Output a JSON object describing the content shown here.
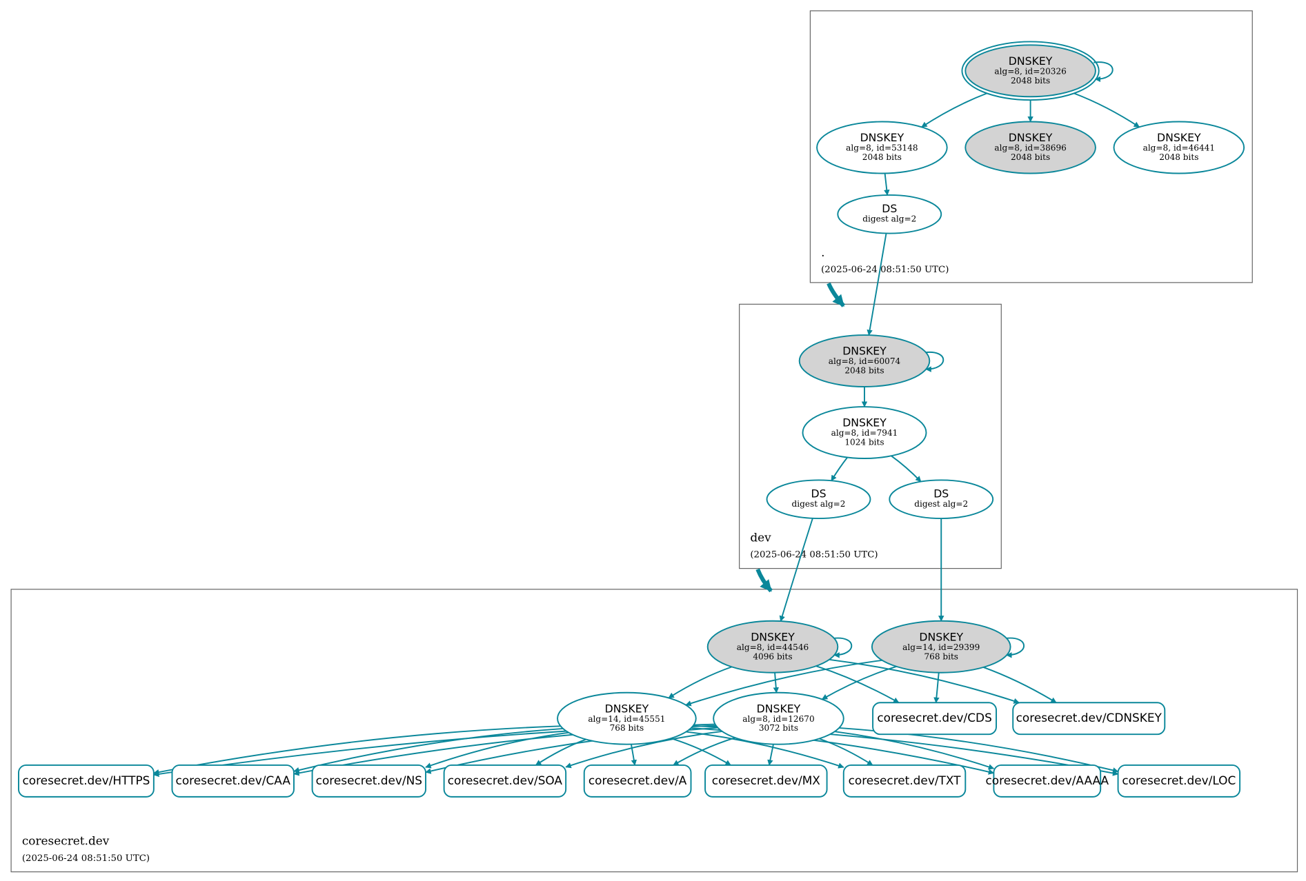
{
  "clusters": [
    {
      "name": ".",
      "time": "(2025-06-24 08:51:50 UTC)"
    },
    {
      "name": "dev",
      "time": "(2025-06-24 08:51:50 UTC)"
    },
    {
      "name": "coresecret.dev",
      "time": "(2025-06-24 08:51:50 UTC)"
    }
  ],
  "nodes": [
    {
      "title": "DNSKEY",
      "lines": [
        "alg=8, id=20326",
        "2048 bits"
      ]
    },
    {
      "title": "DNSKEY",
      "lines": [
        "alg=8, id=53148",
        "2048 bits"
      ]
    },
    {
      "title": "DNSKEY",
      "lines": [
        "alg=8, id=38696",
        "2048 bits"
      ]
    },
    {
      "title": "DNSKEY",
      "lines": [
        "alg=8, id=46441",
        "2048 bits"
      ]
    },
    {
      "title": "DS",
      "lines": [
        "digest alg=2"
      ]
    },
    {
      "title": "DNSKEY",
      "lines": [
        "alg=8, id=60074",
        "2048 bits"
      ]
    },
    {
      "title": "DNSKEY",
      "lines": [
        "alg=8, id=7941",
        "1024 bits"
      ]
    },
    {
      "title": "DS",
      "lines": [
        "digest alg=2"
      ]
    },
    {
      "title": "DS",
      "lines": [
        "digest alg=2"
      ]
    },
    {
      "title": "DNSKEY",
      "lines": [
        "alg=8, id=44546",
        "4096 bits"
      ]
    },
    {
      "title": "DNSKEY",
      "lines": [
        "alg=14, id=29399",
        "768 bits"
      ]
    },
    {
      "title": "DNSKEY",
      "lines": [
        "alg=14, id=45551",
        "768 bits"
      ]
    },
    {
      "title": "DNSKEY",
      "lines": [
        "alg=8, id=12670",
        "3072 bits"
      ]
    },
    {
      "title": "coresecret.dev/CDS"
    },
    {
      "title": "coresecret.dev/CDNSKEY"
    },
    {
      "title": "coresecret.dev/HTTPS"
    },
    {
      "title": "coresecret.dev/CAA"
    },
    {
      "title": "coresecret.dev/NS"
    },
    {
      "title": "coresecret.dev/SOA"
    },
    {
      "title": "coresecret.dev/A"
    },
    {
      "title": "coresecret.dev/MX"
    },
    {
      "title": "coresecret.dev/TXT"
    },
    {
      "title": "coresecret.dev/AAAA"
    },
    {
      "title": "coresecret.dev/LOC"
    }
  ]
}
